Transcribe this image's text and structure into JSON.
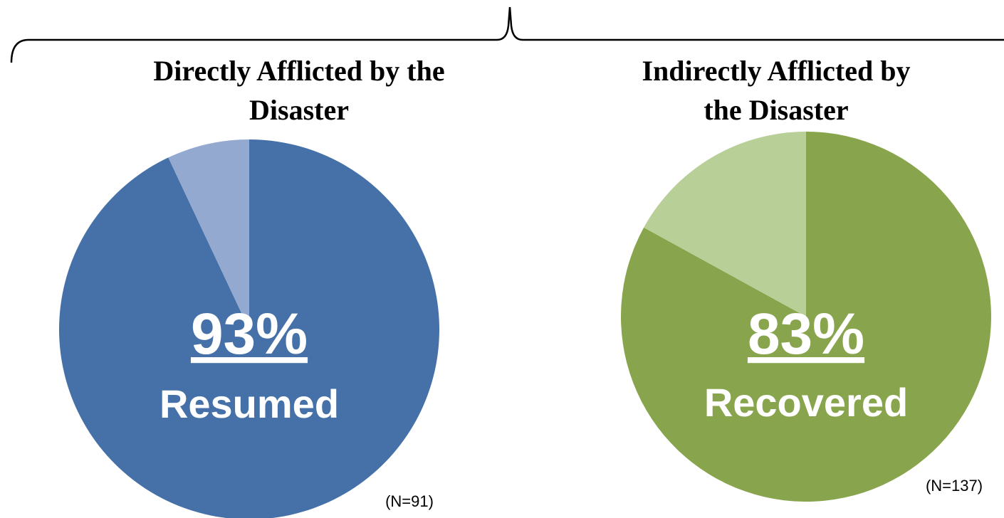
{
  "chart_data": [
    {
      "type": "pie",
      "title": "Directly Afflicted by the Disaster",
      "values": [
        93,
        7
      ],
      "value_labels": [
        "93%",
        null
      ],
      "colors": [
        "#4571a8",
        "#93a9cf"
      ],
      "sublabel": "Resumed",
      "note": "(N=91)"
    },
    {
      "type": "pie",
      "title": "Indirectly Afflicted by the Disaster",
      "values": [
        83,
        17
      ],
      "value_labels": [
        "83%",
        null
      ],
      "colors": [
        "#88a54d",
        "#b9cf98"
      ],
      "sublabel": "Recovered",
      "note": "(N=137)"
    }
  ]
}
